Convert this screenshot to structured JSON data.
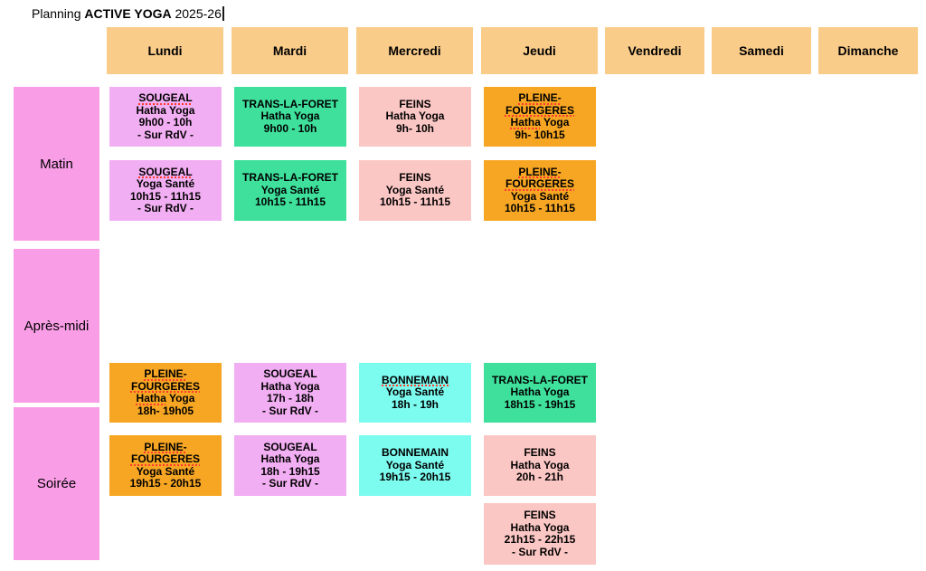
{
  "title": {
    "prefix": "Planning ",
    "highlight": "ACTIVE YOGA",
    "suffix": " 2025-26"
  },
  "days": [
    "Lundi",
    "Mardi",
    "Mercredi",
    "Jeudi",
    "Vendredi",
    "Samedi",
    "Dimanche"
  ],
  "periods": [
    "Matin",
    "Après-midi",
    "Soirée"
  ],
  "palette": {
    "day_header_bg": "#FACC8A",
    "period_bg": "#FA9DE7",
    "violet": "#F2AEF2",
    "green": "#3EE09C",
    "salmon": "#FBC7C4",
    "orange": "#F6A623",
    "cyan": "#7CFBEF",
    "spellcheck_red": "#FF3B30",
    "text": "#000000",
    "background": "#FFFFFF"
  },
  "sessions": [
    {
      "day": "Lundi",
      "slot": "matin-1",
      "color": "violet",
      "lines": [
        [
          {
            "t": "SOUGEAL",
            "u": true
          }
        ],
        [
          {
            "t": "Hatha Yoga"
          }
        ],
        [
          {
            "t": "9h00 - 10h"
          }
        ],
        [
          {
            "t": "- Sur RdV -"
          }
        ]
      ]
    },
    {
      "day": "Lundi",
      "slot": "matin-2",
      "color": "violet",
      "lines": [
        [
          {
            "t": "SOUGEAL",
            "u": true
          }
        ],
        [
          {
            "t": "Yoga Santé"
          }
        ],
        [
          {
            "t": "10h15 - 11h15"
          }
        ],
        [
          {
            "t": "- Sur RdV -"
          }
        ]
      ]
    },
    {
      "day": "Mardi",
      "slot": "matin-1",
      "color": "green",
      "lines": [
        [
          {
            "t": "TRANS-LA-FORET"
          }
        ],
        [
          {
            "t": "Hatha Yoga"
          }
        ],
        [
          {
            "t": "9h00 - 10h"
          }
        ]
      ]
    },
    {
      "day": "Mardi",
      "slot": "matin-2",
      "color": "green",
      "lines": [
        [
          {
            "t": "TRANS-LA-FORET"
          }
        ],
        [
          {
            "t": "Yoga Santé"
          }
        ],
        [
          {
            "t": "10h15 - 11h15"
          }
        ]
      ]
    },
    {
      "day": "Mercredi",
      "slot": "matin-1",
      "color": "salmon",
      "lines": [
        [
          {
            "t": "FEINS"
          }
        ],
        [
          {
            "t": "Hatha Yoga"
          }
        ],
        [
          {
            "t": "9h- 10h"
          }
        ]
      ]
    },
    {
      "day": "Mercredi",
      "slot": "matin-2",
      "color": "salmon",
      "lines": [
        [
          {
            "t": "FEINS"
          }
        ],
        [
          {
            "t": "Yoga Santé"
          }
        ],
        [
          {
            "t": "10h15 - 11h15"
          }
        ]
      ]
    },
    {
      "day": "Jeudi",
      "slot": "matin-1",
      "color": "orange",
      "lines": [
        [
          {
            "t": "PLEINE-",
            "u": true
          }
        ],
        [
          {
            "t": "FOURGERES",
            "u": true
          }
        ],
        [
          {
            "t": "Hatha",
            "u": true
          },
          {
            "t": " Yoga"
          }
        ],
        [
          {
            "t": "9h- 10h15"
          }
        ]
      ]
    },
    {
      "day": "Jeudi",
      "slot": "matin-2",
      "color": "orange",
      "lines": [
        [
          {
            "t": "PLEINE-",
            "u": true
          }
        ],
        [
          {
            "t": "FOURGERES",
            "u": true
          }
        ],
        [
          {
            "t": "Yoga Santé"
          }
        ],
        [
          {
            "t": "10h15 - 11h15"
          }
        ]
      ]
    },
    {
      "day": "Lundi",
      "slot": "soir-1",
      "color": "orange",
      "lines": [
        [
          {
            "t": "PLEINE-",
            "u": true
          }
        ],
        [
          {
            "t": "FOURGERES",
            "u": true
          }
        ],
        [
          {
            "t": "Hatha",
            "u": true
          },
          {
            "t": " Yoga"
          }
        ],
        [
          {
            "t": "18h- 19h05"
          }
        ]
      ]
    },
    {
      "day": "Lundi",
      "slot": "soir-2",
      "color": "orange",
      "lines": [
        [
          {
            "t": "PLEINE-",
            "u": true
          }
        ],
        [
          {
            "t": "FOURGERES",
            "u": true
          }
        ],
        [
          {
            "t": "Yoga Santé"
          }
        ],
        [
          {
            "t": "19h15 - 20h15"
          }
        ]
      ]
    },
    {
      "day": "Mardi",
      "slot": "soir-1",
      "color": "violet",
      "lines": [
        [
          {
            "t": "SOUGEAL"
          }
        ],
        [
          {
            "t": "Hatha Yoga"
          }
        ],
        [
          {
            "t": "17h - 18h"
          }
        ],
        [
          {
            "t": "- Sur RdV -"
          }
        ]
      ]
    },
    {
      "day": "Mardi",
      "slot": "soir-2",
      "color": "violet",
      "lines": [
        [
          {
            "t": "SOUGEAL"
          }
        ],
        [
          {
            "t": "Hatha Yoga"
          }
        ],
        [
          {
            "t": "18h - 19h15"
          }
        ],
        [
          {
            "t": "- Sur RdV -"
          }
        ]
      ]
    },
    {
      "day": "Mercredi",
      "slot": "soir-1",
      "color": "cyan",
      "lines": [
        [
          {
            "t": "BONNEMAIN",
            "u": true
          }
        ],
        [
          {
            "t": "Yoga Santé"
          }
        ],
        [
          {
            "t": "18h - 19h"
          }
        ]
      ]
    },
    {
      "day": "Mercredi",
      "slot": "soir-2",
      "color": "cyan",
      "lines": [
        [
          {
            "t": "BONNEMAIN"
          }
        ],
        [
          {
            "t": "Yoga Santé"
          }
        ],
        [
          {
            "t": "19h15 - 20h15"
          }
        ]
      ]
    },
    {
      "day": "Jeudi",
      "slot": "soir-1",
      "color": "green",
      "lines": [
        [
          {
            "t": "TRANS-LA-FORET"
          }
        ],
        [
          {
            "t": "Hatha Yoga"
          }
        ],
        [
          {
            "t": "18h15 - 19h15"
          }
        ]
      ]
    },
    {
      "day": "Jeudi",
      "slot": "soir-2",
      "color": "salmon",
      "lines": [
        [
          {
            "t": "FEINS"
          }
        ],
        [
          {
            "t": "Hatha Yoga"
          }
        ],
        [
          {
            "t": "20h - 21h"
          }
        ]
      ]
    },
    {
      "day": "Jeudi",
      "slot": "soir-3",
      "color": "salmon",
      "lines": [
        [
          {
            "t": "FEINS"
          }
        ],
        [
          {
            "t": "Hatha Yoga"
          }
        ],
        [
          {
            "t": "21h15 - 22h15"
          }
        ],
        [
          {
            "t": "- Sur RdV -"
          }
        ]
      ]
    }
  ]
}
